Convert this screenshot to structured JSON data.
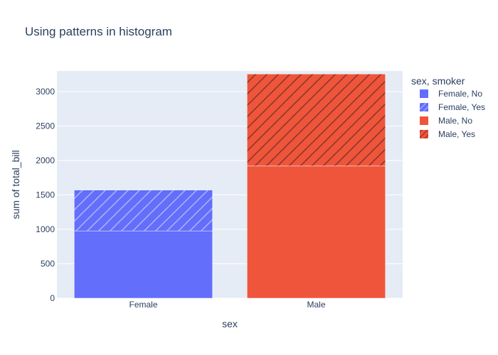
{
  "chart_data": {
    "type": "bar",
    "barmode": "stack",
    "title": "Using patterns in histogram",
    "xlabel": "sex",
    "ylabel": "sum of total_bill",
    "categories": [
      "Female",
      "Male"
    ],
    "ylim": [
      0,
      3300
    ],
    "yticks": [
      0,
      500,
      1000,
      1500,
      2000,
      2500,
      3000
    ],
    "legend_title": "sex, smoker",
    "legend_position": "right",
    "grid": true,
    "background": "#e5ecf6",
    "series": [
      {
        "name": "Female, No",
        "category": "Female",
        "value": 977.68,
        "color": "#636efa",
        "pattern": "none"
      },
      {
        "name": "Female, Yes",
        "category": "Female",
        "value": 593.27,
        "color": "#636efa",
        "pattern": "/"
      },
      {
        "name": "Male, No",
        "category": "Male",
        "value": 1919.75,
        "color": "#ef553b",
        "pattern": "none"
      },
      {
        "name": "Male, Yes",
        "category": "Male",
        "value": 1337.07,
        "color": "#ef553b",
        "pattern": "/"
      }
    ]
  }
}
